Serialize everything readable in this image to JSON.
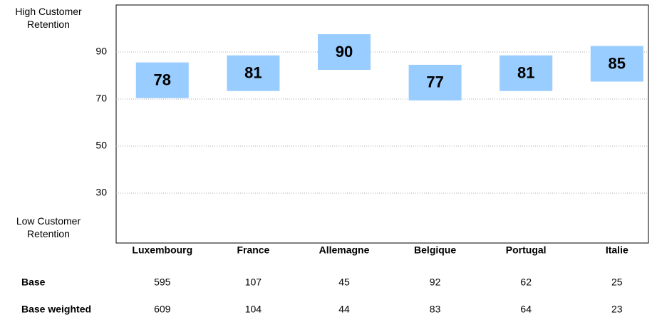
{
  "chart_data": {
    "type": "label-box",
    "top_label": "High Customer Retention",
    "bottom_label": "Low Customer Retention",
    "categories": [
      "Luxembourg",
      "France",
      "Allemagne",
      "Belgique",
      "Portugal",
      "Italie"
    ],
    "values": [
      78,
      81,
      90,
      77,
      81,
      85
    ],
    "color": "#99ccff",
    "ylim": [
      10,
      110
    ],
    "yticks": [
      30,
      50,
      70,
      90
    ],
    "grid": true,
    "table": [
      {
        "label": "Base",
        "values": [
          595,
          107,
          45,
          92,
          62,
          25
        ]
      },
      {
        "label": "Base weighted",
        "values": [
          609,
          104,
          44,
          83,
          64,
          23
        ]
      }
    ]
  }
}
